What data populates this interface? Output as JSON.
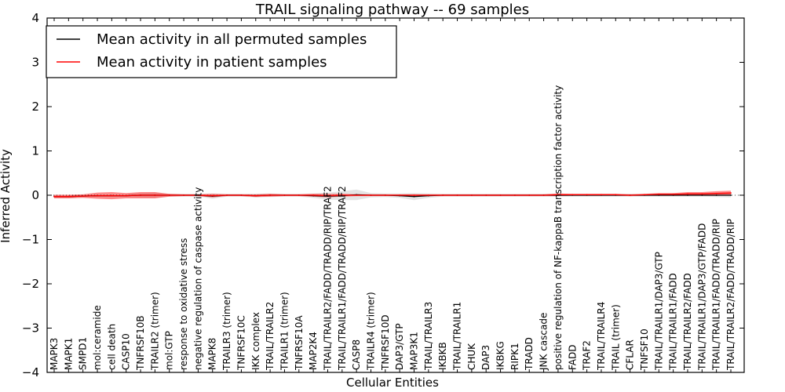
{
  "chart_data": {
    "type": "line",
    "title": "TRAIL signaling pathway -- 69 samples",
    "xlabel": "Cellular Entities",
    "ylabel": "Inferred Activity",
    "ylim": [
      -4,
      4
    ],
    "yticks": [
      -4,
      -3,
      -2,
      -1,
      0,
      1,
      2,
      3,
      4
    ],
    "ytick_labels": [
      "−4",
      "−3",
      "−2",
      "−1",
      "0",
      "1",
      "2",
      "3",
      "4"
    ],
    "grid": false,
    "legend_position": "top-left",
    "categories": [
      "MAPK3",
      "MAPK1",
      "SMPD1",
      "mol:ceramide",
      "cell death",
      "CASP10",
      "TNFRSF10B",
      "TRAILR2 (trimer)",
      "mol:GTP",
      "response to oxidative stress",
      "negative regulation of caspase activity",
      "MAPK8",
      "TRAILR3 (trimer)",
      "TNFRSF10C",
      "IKK complex",
      "TRAIL/TRAILR2",
      "TRAILR1 (trimer)",
      "TNFRSF10A",
      "MAP2K4",
      "TRAIL/TRAILR2/FADD/TRADD/RIP/TRAF2",
      "TRAIL/TRAILR1/FADD/TRADD/RIP/TRAF2",
      "CASP8",
      "TRAILR4 (trimer)",
      "TNFRSF10D",
      "DAP3/GTP",
      "MAP3K1",
      "TRAIL/TRAILR3",
      "IKBKB",
      "TRAIL/TRAILR1",
      "CHUK",
      "DAP3",
      "IKBKG",
      "RIPK1",
      "TRADD",
      "JNK cascade",
      "positive regulation of NF-kappaB transcription factor activity",
      "FADD",
      "TRAF2",
      "TRAIL/TRAILR4",
      "TRAIL (trimer)",
      "CFLAR",
      "TNFSF10",
      "TRAIL/TRAILR1/DAP3/GTP",
      "TRAIL/TRAILR1/FADD",
      "TRAIL/TRAILR2/FADD",
      "TRAIL/TRAILR1/DAP3/GTP/FADD",
      "TRAIL/TRAILR1/FADD/TRADD/RIP",
      "TRAIL/TRAILR2/FADD/TRADD/RIP"
    ],
    "series": [
      {
        "name": "Mean activity in all permuted samples",
        "color": "#000000",
        "band_color": "#bbbbbb",
        "values": [
          -0.03,
          -0.03,
          -0.02,
          -0.01,
          -0.01,
          -0.01,
          0.0,
          0.0,
          0.0,
          0.0,
          0.0,
          -0.02,
          0.0,
          0.0,
          -0.01,
          0.0,
          0.0,
          0.0,
          -0.01,
          -0.02,
          -0.01,
          0.01,
          0.0,
          0.0,
          -0.01,
          -0.03,
          -0.01,
          0.0,
          0.0,
          0.0,
          0.0,
          0.0,
          0.0,
          0.0,
          0.0,
          0.0,
          0.0,
          0.0,
          0.0,
          0.0,
          0.0,
          0.0,
          0.0,
          0.0,
          0.0,
          0.0,
          0.0,
          0.0
        ],
        "band": [
          0.03,
          0.03,
          0.03,
          0.03,
          0.03,
          0.03,
          0.05,
          0.06,
          0.03,
          0.03,
          0.03,
          0.06,
          0.03,
          0.03,
          0.04,
          0.04,
          0.03,
          0.03,
          0.05,
          0.08,
          0.1,
          0.12,
          0.05,
          0.04,
          0.05,
          0.08,
          0.05,
          0.03,
          0.03,
          0.03,
          0.03,
          0.03,
          0.03,
          0.03,
          0.03,
          0.03,
          0.03,
          0.03,
          0.03,
          0.03,
          0.03,
          0.03,
          0.03,
          0.03,
          0.03,
          0.03,
          0.04,
          0.05
        ]
      },
      {
        "name": "Mean activity in patient samples",
        "color": "#ff0000",
        "band_color": "#ff0000",
        "values": [
          -0.03,
          -0.03,
          -0.02,
          -0.01,
          -0.01,
          -0.01,
          0.0,
          0.0,
          0.0,
          0.0,
          0.0,
          -0.01,
          0.0,
          0.0,
          -0.01,
          0.0,
          0.0,
          0.0,
          0.0,
          -0.01,
          0.0,
          0.0,
          0.0,
          0.0,
          0.0,
          0.0,
          0.0,
          0.0,
          0.0,
          0.0,
          0.0,
          0.0,
          0.0,
          0.0,
          0.0,
          0.01,
          0.01,
          0.01,
          0.01,
          0.01,
          0.0,
          0.01,
          0.02,
          0.02,
          0.03,
          0.03,
          0.04,
          0.05
        ],
        "band": [
          0.04,
          0.04,
          0.04,
          0.07,
          0.08,
          0.06,
          0.07,
          0.07,
          0.03,
          0.02,
          0.02,
          0.04,
          0.02,
          0.02,
          0.03,
          0.03,
          0.02,
          0.02,
          0.03,
          0.04,
          0.03,
          0.02,
          0.02,
          0.02,
          0.02,
          0.02,
          0.02,
          0.02,
          0.02,
          0.02,
          0.02,
          0.02,
          0.02,
          0.02,
          0.02,
          0.03,
          0.02,
          0.02,
          0.02,
          0.02,
          0.02,
          0.02,
          0.03,
          0.03,
          0.04,
          0.04,
          0.05,
          0.05
        ]
      }
    ]
  }
}
